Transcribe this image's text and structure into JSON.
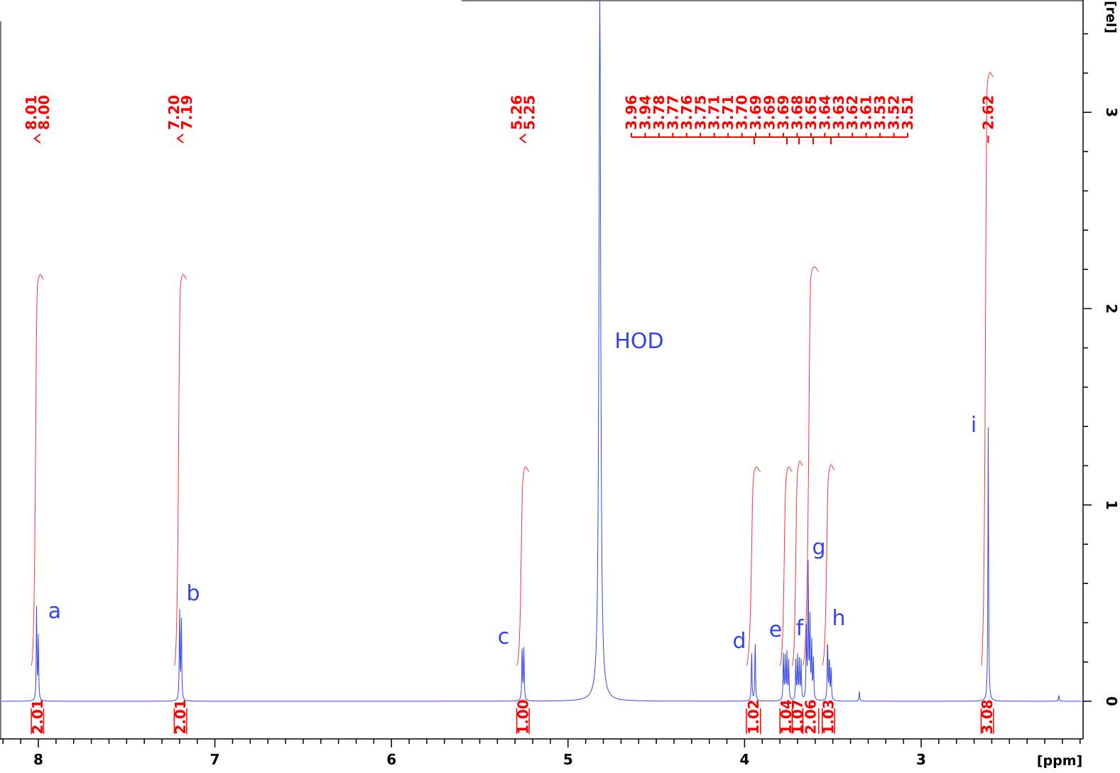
{
  "chart_data": {
    "type": "line",
    "title": "",
    "xlabel": "[ppm]",
    "ylabel": "[rel]",
    "xlim": [
      8.2,
      2.1
    ],
    "ylim": [
      -0.2,
      3.6
    ],
    "x_reversed": true,
    "x_ticks": [
      "8",
      "7",
      "6",
      "5",
      "4",
      "3"
    ],
    "y_ticks": [
      "0",
      "1",
      "2",
      "3"
    ],
    "series": [
      {
        "peaks": [
          {
            "ppm": 8.01,
            "height": 0.47
          },
          {
            "ppm": 8.0,
            "height": 0.32
          },
          {
            "ppm": 7.2,
            "height": 0.47
          },
          {
            "ppm": 7.19,
            "height": 0.43
          },
          {
            "ppm": 5.26,
            "height": 0.28
          },
          {
            "ppm": 5.25,
            "height": 0.28
          },
          {
            "ppm": 4.82,
            "height": 3.6
          },
          {
            "ppm": 3.96,
            "height": 0.26
          },
          {
            "ppm": 3.94,
            "height": 0.32
          },
          {
            "ppm": 3.78,
            "height": 0.24
          },
          {
            "ppm": 3.77,
            "height": 0.22
          },
          {
            "ppm": 3.76,
            "height": 0.24
          },
          {
            "ppm": 3.75,
            "height": 0.2
          },
          {
            "ppm": 3.71,
            "height": 0.2
          },
          {
            "ppm": 3.7,
            "height": 0.22
          },
          {
            "ppm": 3.69,
            "height": 0.2
          },
          {
            "ppm": 3.68,
            "height": 0.2
          },
          {
            "ppm": 3.65,
            "height": 0.36
          },
          {
            "ppm": 3.64,
            "height": 0.7
          },
          {
            "ppm": 3.63,
            "height": 0.42
          },
          {
            "ppm": 3.62,
            "height": 0.3
          },
          {
            "ppm": 3.61,
            "height": 0.22
          },
          {
            "ppm": 3.53,
            "height": 0.33
          },
          {
            "ppm": 3.52,
            "height": 0.22
          },
          {
            "ppm": 3.51,
            "height": 0.18
          },
          {
            "ppm": 3.35,
            "height": 0.05
          },
          {
            "ppm": 2.62,
            "height": 1.4
          },
          {
            "ppm": 2.22,
            "height": 0.03
          }
        ]
      }
    ],
    "peak_labels": [
      {
        "text": "a",
        "ppm": 8.01
      },
      {
        "text": "b",
        "ppm": 7.2
      },
      {
        "text": "c",
        "ppm": 5.26
      },
      {
        "text": "HOD",
        "ppm": 4.82
      },
      {
        "text": "d",
        "ppm": 3.95
      },
      {
        "text": "e",
        "ppm": 3.77
      },
      {
        "text": "f",
        "ppm": 3.7
      },
      {
        "text": "g",
        "ppm": 3.64
      },
      {
        "text": "h",
        "ppm": 3.52
      },
      {
        "text": "i",
        "ppm": 2.62
      }
    ],
    "peak_picks": [
      {
        "values": [
          "8.01",
          "8.00"
        ],
        "ppm": [
          8.01,
          8.0
        ]
      },
      {
        "values": [
          "7.20",
          "7.19"
        ],
        "ppm": [
          7.2,
          7.19
        ]
      },
      {
        "values": [
          "5.26",
          "5.25"
        ],
        "ppm": [
          5.26,
          5.25
        ]
      },
      {
        "values": [
          "3.96",
          "3.94",
          "3.78",
          "3.77",
          "3.76",
          "3.75",
          "3.71",
          "3.71",
          "3.70",
          "3.69",
          "3.69",
          "3.69",
          "3.68",
          "3.65",
          "3.64",
          "3.63",
          "3.62",
          "3.61",
          "3.53",
          "3.52",
          "3.51"
        ],
        "ppm": [
          3.96,
          3.94,
          3.78,
          3.77,
          3.76,
          3.75,
          3.71,
          3.71,
          3.7,
          3.69,
          3.69,
          3.69,
          3.68,
          3.65,
          3.64,
          3.63,
          3.62,
          3.61,
          3.53,
          3.52,
          3.51
        ]
      },
      {
        "values": [
          "2.62"
        ],
        "ppm": [
          2.62
        ]
      }
    ],
    "integrals": [
      {
        "value": "2.01",
        "from": 8.04,
        "to": 7.97,
        "rise": 2.15
      },
      {
        "value": "2.01",
        "from": 7.23,
        "to": 7.16,
        "rise": 2.15
      },
      {
        "value": "1.00",
        "from": 5.29,
        "to": 5.22,
        "rise": 1.17
      },
      {
        "value": "1.02",
        "from": 3.99,
        "to": 3.91,
        "rise": 1.17
      },
      {
        "value": "1.04",
        "from": 3.8,
        "to": 3.73,
        "rise": 1.17
      },
      {
        "value": "1.07",
        "from": 3.73,
        "to": 3.67,
        "rise": 1.2
      },
      {
        "value": "2.06",
        "from": 3.67,
        "to": 3.58,
        "rise": 2.19
      },
      {
        "value": "1.03",
        "from": 3.56,
        "to": 3.49,
        "rise": 1.18
      },
      {
        "value": "3.08",
        "from": 2.66,
        "to": 2.59,
        "rise": 3.18
      }
    ]
  }
}
